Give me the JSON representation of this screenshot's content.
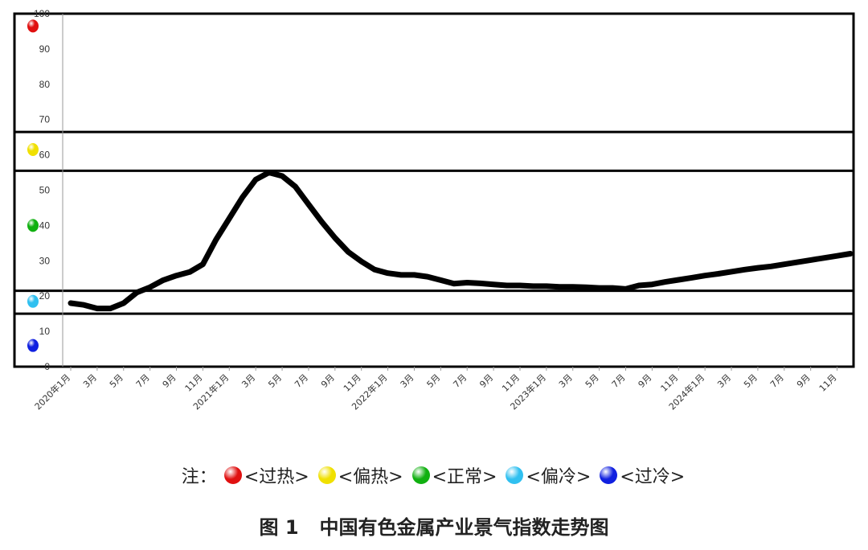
{
  "chart_data": {
    "type": "line",
    "ylim": [
      0,
      100
    ],
    "yticks": [
      0,
      10,
      20,
      30,
      40,
      50,
      60,
      70,
      80,
      90,
      100
    ],
    "x_labels": [
      "2020年1月",
      "3月",
      "5月",
      "7月",
      "9月",
      "11月",
      "2021年1月",
      "3月",
      "5月",
      "7月",
      "9月",
      "11月",
      "2022年1月",
      "3月",
      "5月",
      "7月",
      "9月",
      "11月",
      "2023年1月",
      "3月",
      "5月",
      "7月",
      "9月",
      "11月",
      "2024年1月",
      "3月",
      "5月",
      "7月",
      "9月",
      "11月"
    ],
    "zone_bounds": [
      15,
      21.5,
      55.5,
      66.5
    ],
    "zone_markers": [
      {
        "zone": "过热",
        "y": 96.5,
        "color": "#e01010"
      },
      {
        "zone": "偏热",
        "y": 61.5,
        "color": "#f0e000"
      },
      {
        "zone": "正常",
        "y": 40,
        "color": "#10b010"
      },
      {
        "zone": "偏冷",
        "y": 18.5,
        "color": "#30c0f0"
      },
      {
        "zone": "过冷",
        "y": 6,
        "color": "#1020e0"
      }
    ],
    "series": [
      {
        "color": "#000000",
        "values": [
          18,
          17.5,
          16.5,
          16.5,
          18,
          21,
          22.5,
          24.5,
          25.8,
          26.8,
          29,
          36,
          42,
          48,
          53,
          55,
          54,
          51,
          46,
          41,
          36.5,
          32.5,
          29.8,
          27.5,
          26.5,
          26,
          26,
          25.5,
          24.5,
          23.5,
          23.8,
          23.6,
          23.3,
          23,
          23,
          22.8,
          22.8,
          22.6,
          22.6,
          22.5,
          22.3,
          22.3,
          22,
          23,
          23.3,
          24,
          24.6,
          25.2,
          25.8,
          26.3,
          26.9,
          27.5,
          28,
          28.4,
          29,
          29.6,
          30.2,
          30.8,
          31.4,
          32
        ]
      }
    ]
  },
  "legend": {
    "prefix": "注：",
    "items": [
      {
        "label": "<过热>",
        "color": "#e01010"
      },
      {
        "label": "<偏热>",
        "color": "#f0e000"
      },
      {
        "label": "<正常>",
        "color": "#10b010"
      },
      {
        "label": "<偏冷>",
        "color": "#30c0f0"
      },
      {
        "label": "<过冷>",
        "color": "#1020e0"
      }
    ]
  },
  "caption": {
    "number": "图 1",
    "title": "中国有色金属产业景气指数走势图"
  }
}
